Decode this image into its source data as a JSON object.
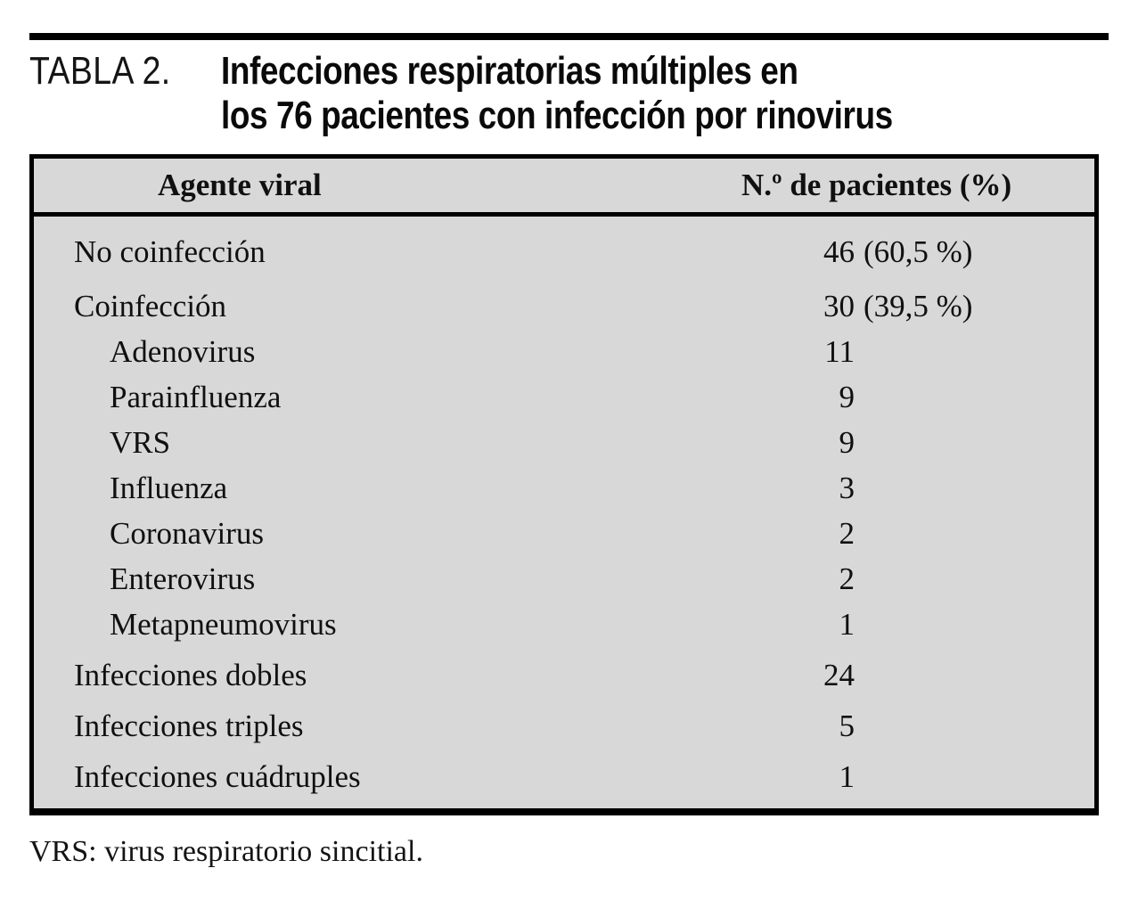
{
  "caption": {
    "label": "TABLA 2.",
    "title_line1": "Infecciones respiratorias múltiples en",
    "title_line2": "los 76 pacientes con infección por rinovirus"
  },
  "table": {
    "columns": [
      "Agente viral",
      "N.º de pacientes (%)"
    ],
    "rows": [
      {
        "label": "No coinfección",
        "num": "46",
        "pct": "(60,5 %)"
      },
      {
        "label": "Coinfección",
        "num": "30",
        "pct": "(39,5 %)"
      },
      {
        "label": "Adenovirus",
        "num": "11",
        "pct": ""
      },
      {
        "label": "Parainfluenza",
        "num": "9",
        "pct": ""
      },
      {
        "label": "VRS",
        "num": "9",
        "pct": ""
      },
      {
        "label": "Influenza",
        "num": "3",
        "pct": ""
      },
      {
        "label": "Coronavirus",
        "num": "2",
        "pct": ""
      },
      {
        "label": "Enterovirus",
        "num": "2",
        "pct": ""
      },
      {
        "label": "Metapneumovirus",
        "num": "1",
        "pct": ""
      },
      {
        "label": "Infecciones dobles",
        "num": "24",
        "pct": ""
      },
      {
        "label": "Infecciones triples",
        "num": "5",
        "pct": ""
      },
      {
        "label": "Infecciones cuádruples",
        "num": "1",
        "pct": ""
      }
    ]
  },
  "footnote": {
    "text": "VRS: virus respiratorio sincitial."
  },
  "colors": {
    "table_background": "#d8d8d8",
    "border": "#000000",
    "text": "#101010"
  }
}
